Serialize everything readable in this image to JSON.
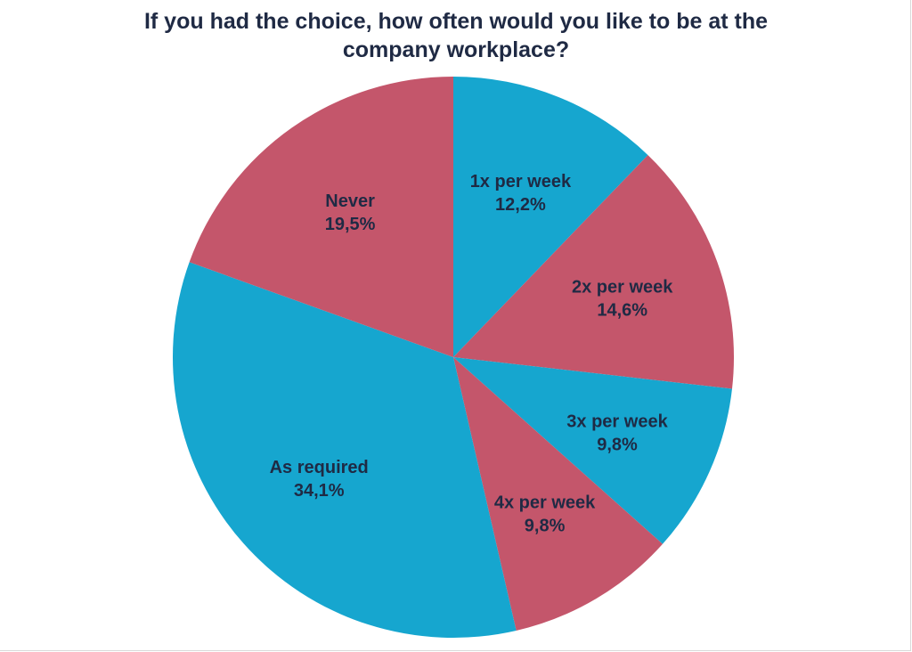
{
  "chart_data": {
    "type": "pie",
    "title_lines": [
      "If you had the choice, how often would you like to be at the",
      "company workplace?"
    ],
    "slices": [
      {
        "label": "1x per week",
        "value": 12.2,
        "value_label": "12,2%",
        "color": "#16a6cf"
      },
      {
        "label": "2x per week",
        "value": 14.6,
        "value_label": "14,6%",
        "color": "#c4566b"
      },
      {
        "label": "3x per week",
        "value": 9.8,
        "value_label": "9,8%",
        "color": "#16a6cf"
      },
      {
        "label": "4x per week",
        "value": 9.8,
        "value_label": "9,8%",
        "color": "#c4566b"
      },
      {
        "label": "As required",
        "value": 34.1,
        "value_label": "34,1%",
        "color": "#16a6cf"
      },
      {
        "label": "Never",
        "value": 19.5,
        "value_label": "19,5%",
        "color": "#c4566b"
      }
    ],
    "start": "12 o'clock",
    "direction": "clockwise",
    "legend": "none"
  }
}
